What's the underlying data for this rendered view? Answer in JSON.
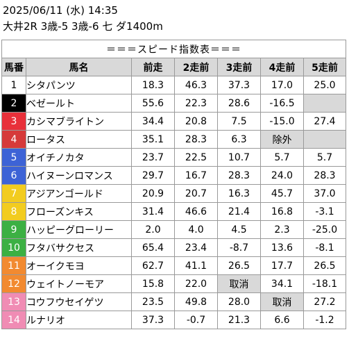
{
  "header": {
    "datetime": "2025/06/11 (水) 14:35",
    "race_info": "大井2R 3歳-5 3歳-6 七 ダ1400m"
  },
  "table": {
    "title": "＝＝＝スピード指数表＝＝＝",
    "columns": [
      "馬番",
      "馬名",
      "前走",
      "2走前",
      "3走前",
      "4走前",
      "5走前"
    ],
    "rows": [
      {
        "num": "1",
        "bg": "#ffffff",
        "fg": "#000000",
        "name": "シタパンツ",
        "vals": [
          "18.3",
          "46.3",
          "37.3",
          "17.0",
          "25.0"
        ]
      },
      {
        "num": "2",
        "bg": "#000000",
        "fg": "#ffffff",
        "name": "ベゼールト",
        "vals": [
          "55.6",
          "22.3",
          "28.6",
          "-16.5",
          ""
        ]
      },
      {
        "num": "3",
        "bg": "#e8303a",
        "fg": "#ffffff",
        "name": "カシマブライトン",
        "vals": [
          "34.4",
          "20.8",
          "7.5",
          "-15.0",
          "27.4"
        ]
      },
      {
        "num": "4",
        "bg": "#d63a3a",
        "fg": "#ffffff",
        "name": "ロータス",
        "vals": [
          "35.1",
          "28.3",
          "6.3",
          "除外",
          ""
        ]
      },
      {
        "num": "5",
        "bg": "#3d63d6",
        "fg": "#ffffff",
        "name": "オイチノカタ",
        "vals": [
          "23.7",
          "22.5",
          "10.7",
          "5.7",
          "5.7"
        ]
      },
      {
        "num": "6",
        "bg": "#3d63d6",
        "fg": "#ffffff",
        "name": "ハイヌーンロマンス",
        "vals": [
          "29.7",
          "16.7",
          "28.3",
          "24.0",
          "28.3"
        ]
      },
      {
        "num": "7",
        "bg": "#f2cc1f",
        "fg": "#ffffff",
        "name": "アジアンゴールド",
        "vals": [
          "20.9",
          "20.7",
          "16.3",
          "45.7",
          "37.0"
        ]
      },
      {
        "num": "8",
        "bg": "#f2cc1f",
        "fg": "#ffffff",
        "name": "フローズンキス",
        "vals": [
          "31.4",
          "46.6",
          "21.4",
          "16.8",
          "-3.1"
        ]
      },
      {
        "num": "9",
        "bg": "#3cb043",
        "fg": "#ffffff",
        "name": "ハッピーグローリー",
        "vals": [
          "2.0",
          "4.0",
          "4.5",
          "2.3",
          "-25.0"
        ]
      },
      {
        "num": "10",
        "bg": "#3cb043",
        "fg": "#ffffff",
        "name": "フタバサクセス",
        "vals": [
          "65.4",
          "23.4",
          "-8.7",
          "13.6",
          "-8.1"
        ]
      },
      {
        "num": "11",
        "bg": "#f28a30",
        "fg": "#ffffff",
        "name": "オーイクモヨ",
        "vals": [
          "62.7",
          "41.1",
          "26.5",
          "17.7",
          "26.5"
        ]
      },
      {
        "num": "12",
        "bg": "#f28a30",
        "fg": "#ffffff",
        "name": "ウェイトノーモア",
        "vals": [
          "15.8",
          "22.0",
          "取消",
          "34.1",
          "-18.1"
        ]
      },
      {
        "num": "13",
        "bg": "#f08cb4",
        "fg": "#ffffff",
        "name": "コウフウセイゲツ",
        "vals": [
          "23.5",
          "49.8",
          "28.0",
          "取消",
          "27.2"
        ]
      },
      {
        "num": "14",
        "bg": "#f08cb4",
        "fg": "#ffffff",
        "name": "ルナリオ",
        "vals": [
          "37.3",
          "-0.7",
          "21.3",
          "6.6",
          "-1.2"
        ]
      }
    ]
  }
}
